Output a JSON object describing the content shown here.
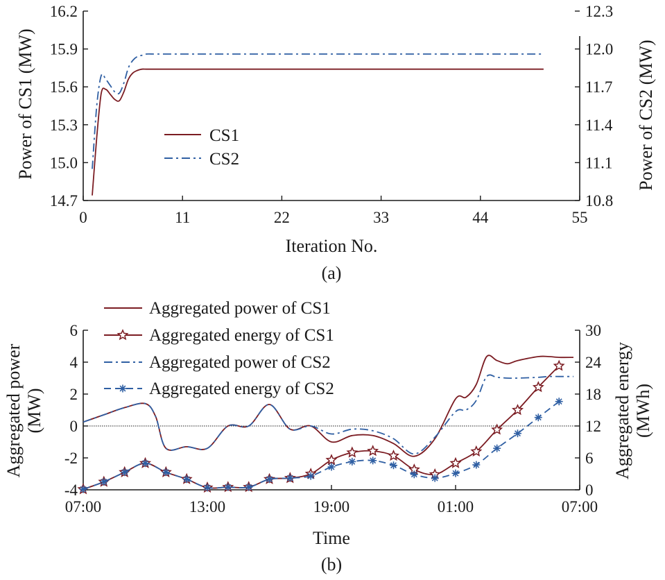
{
  "colors": {
    "cs1": "#7b1c22",
    "cs2": "#2f5fa3",
    "axis": "#1a1a1a"
  },
  "chart_data": [
    {
      "type": "line",
      "caption": "(a)",
      "xlabel": "Iteration No.",
      "ylabel_left": "Power of CS1 (MW)",
      "ylabel_right": "Power of CS2 (MW)",
      "xlim": [
        0,
        55
      ],
      "ylim_left": [
        14.7,
        16.2
      ],
      "ylim_right": [
        10.8,
        12.3
      ],
      "xticks": [
        "0",
        "11",
        "22",
        "33",
        "44",
        "55"
      ],
      "yticks_left": [
        "14.7",
        "15.0",
        "15.3",
        "15.6",
        "15.9",
        "16.2"
      ],
      "yticks_right": [
        "10.8",
        "11.1",
        "11.4",
        "11.7",
        "12.0",
        "12.3"
      ],
      "legend": {
        "placement": "center-left",
        "entries": [
          "CS1",
          "CS2"
        ]
      },
      "series": [
        {
          "name": "CS1",
          "axis": "left",
          "style": "solid",
          "x": [
            1,
            1.5,
            2,
            2.5,
            3,
            3.5,
            4,
            4.5,
            5,
            5.5,
            6,
            6.5,
            7,
            8,
            10,
            15,
            20,
            30,
            40,
            51
          ],
          "y": [
            14.74,
            15.2,
            15.55,
            15.58,
            15.54,
            15.5,
            15.49,
            15.56,
            15.66,
            15.71,
            15.73,
            15.74,
            15.74,
            15.74,
            15.74,
            15.74,
            15.74,
            15.74,
            15.74,
            15.74
          ]
        },
        {
          "name": "CS2",
          "axis": "right",
          "style": "dashdot",
          "x": [
            1,
            1.5,
            2,
            2.5,
            3,
            3.5,
            4,
            4.5,
            5,
            5.5,
            6,
            6.5,
            7,
            8,
            10,
            15,
            20,
            30,
            40,
            51
          ],
          "y": [
            11.05,
            11.55,
            11.79,
            11.76,
            11.71,
            11.66,
            11.65,
            11.73,
            11.85,
            11.91,
            11.94,
            11.95,
            11.96,
            11.96,
            11.96,
            11.96,
            11.96,
            11.96,
            11.96,
            11.96
          ]
        }
      ]
    },
    {
      "type": "line",
      "caption": "(b)",
      "xlabel": "Time",
      "ylabel_left": [
        "Aggregated power",
        "(MW)"
      ],
      "ylabel_right": [
        "Aggregated energy",
        "(MWh)"
      ],
      "xlim": [
        0,
        24
      ],
      "ylim_left": [
        -4,
        6
      ],
      "ylim_right": [
        0,
        30
      ],
      "xticks": [
        "07:00",
        "13:00",
        "19:00",
        "01:00",
        "07:00"
      ],
      "yticks_left": [
        "-4",
        "-2",
        "0",
        "2",
        "4",
        "6"
      ],
      "yticks_right": [
        "0",
        "6",
        "12",
        "18",
        "24",
        "30"
      ],
      "reference_line_y": 0,
      "legend": {
        "placement": "top",
        "entries": [
          "Aggregated power of CS1",
          "Aggregated energy of CS1",
          "Aggregated power of CS2",
          "Aggregated energy of CS2"
        ]
      },
      "series": [
        {
          "name": "Aggregated power of CS1",
          "axis": "left",
          "style": "solid",
          "color": "cs1",
          "x": [
            0,
            1,
            2,
            3,
            3.5,
            4,
            5,
            6,
            7,
            8,
            9,
            10,
            11,
            12,
            13,
            14,
            15,
            16,
            17,
            18,
            18.5,
            19,
            19.5,
            20,
            20.5,
            21,
            22,
            22.5,
            23,
            23.7
          ],
          "y": [
            0.25,
            0.7,
            1.15,
            1.4,
            0.6,
            -1.4,
            -1.3,
            -1.4,
            0.0,
            0.0,
            1.35,
            -0.2,
            0.0,
            -1.0,
            -0.6,
            -0.6,
            -1.1,
            -1.9,
            -0.8,
            1.7,
            1.8,
            2.6,
            4.35,
            4.1,
            3.9,
            4.1,
            4.35,
            4.35,
            4.3,
            4.3
          ]
        },
        {
          "name": "Aggregated energy of CS1",
          "axis": "right",
          "style": "solid-marker-star",
          "color": "cs1",
          "x": [
            0,
            1,
            2,
            3,
            4,
            5,
            6,
            7,
            8,
            9,
            10,
            11,
            12,
            13,
            14,
            15,
            16,
            17,
            18,
            19,
            20,
            21,
            22,
            23
          ],
          "y": [
            0.1,
            1.5,
            3.3,
            5.0,
            3.3,
            2.0,
            0.4,
            0.5,
            0.5,
            2.0,
            2.2,
            3.0,
            5.6,
            7.0,
            7.3,
            6.4,
            3.8,
            2.9,
            5.0,
            7.2,
            11.3,
            15.0,
            19.3,
            23.3
          ]
        },
        {
          "name": "Aggregated power of CS2",
          "axis": "left",
          "style": "dashdot",
          "color": "cs2",
          "x": [
            0,
            1,
            2,
            3,
            3.5,
            4,
            5,
            6,
            7,
            8,
            9,
            10,
            11,
            12,
            13,
            14,
            15,
            16,
            17,
            18,
            18.5,
            19,
            19.5,
            20,
            20.5,
            21,
            22,
            22.5,
            23,
            23.7
          ],
          "y": [
            0.25,
            0.7,
            1.15,
            1.4,
            0.6,
            -1.4,
            -1.3,
            -1.4,
            0.0,
            0.0,
            1.35,
            -0.2,
            0.0,
            -0.5,
            -0.2,
            -0.3,
            -0.8,
            -1.75,
            -0.7,
            0.9,
            1.0,
            1.6,
            3.1,
            3.05,
            3.0,
            3.0,
            3.05,
            3.1,
            3.1,
            3.1
          ]
        },
        {
          "name": "Aggregated energy of CS2",
          "axis": "right",
          "style": "dashed-marker-asterisk",
          "color": "cs2",
          "x": [
            0,
            1,
            2,
            3,
            4,
            5,
            6,
            7,
            8,
            9,
            10,
            11,
            12,
            13,
            14,
            15,
            16,
            17,
            18,
            19,
            20,
            21,
            22,
            23
          ],
          "y": [
            0.1,
            1.5,
            3.3,
            5.0,
            3.3,
            2.0,
            0.4,
            0.5,
            0.5,
            2.0,
            2.2,
            2.6,
            4.3,
            5.3,
            5.5,
            4.6,
            2.9,
            2.2,
            3.1,
            4.7,
            7.8,
            10.6,
            13.6,
            16.6
          ]
        }
      ]
    }
  ]
}
